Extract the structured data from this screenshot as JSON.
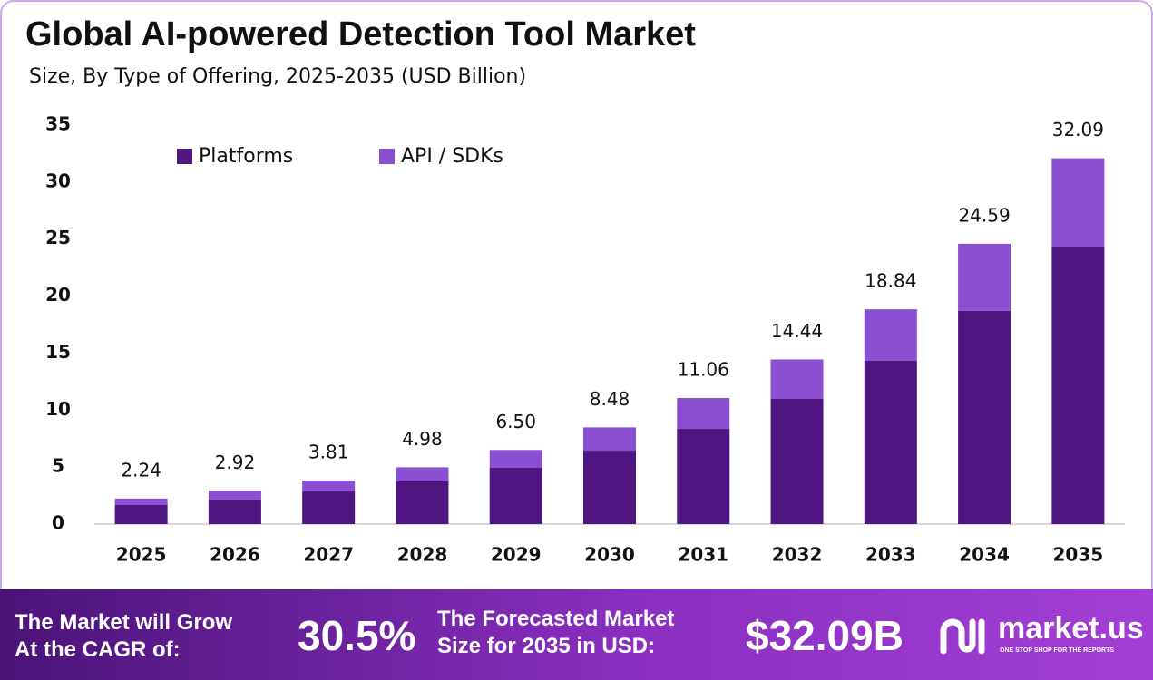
{
  "chart_data": {
    "type": "stacked_bar",
    "title": "Global AI-powered Detection Tool Market",
    "subtitle": "Size, By Type of Offering, 2025-2035 (USD Billion)",
    "categories": [
      "2025",
      "2026",
      "2027",
      "2028",
      "2029",
      "2030",
      "2031",
      "2032",
      "2033",
      "2034",
      "2035"
    ],
    "series": [
      {
        "name": "Platforms",
        "color": "#4f1580",
        "values": [
          1.67,
          2.15,
          2.86,
          3.74,
          4.93,
          6.44,
          8.35,
          10.98,
          14.32,
          18.7,
          24.34
        ]
      },
      {
        "name": "API / SDKs",
        "color": "#8b4fd1",
        "values": [
          0.57,
          0.77,
          0.95,
          1.24,
          1.57,
          2.04,
          2.71,
          3.46,
          4.52,
          5.89,
          7.75
        ]
      }
    ],
    "totals": [
      2.24,
      2.92,
      3.81,
      4.98,
      6.5,
      8.48,
      11.06,
      14.44,
      18.84,
      24.59,
      32.09
    ],
    "total_labels": [
      "2.24",
      "2.92",
      "3.81",
      "4.98",
      "6.50",
      "8.48",
      "11.06",
      "14.44",
      "18.84",
      "24.59",
      "32.09"
    ],
    "ylim": [
      0,
      35
    ],
    "yticks": [
      0,
      5,
      10,
      15,
      20,
      25,
      30,
      35
    ],
    "grid": false,
    "legend": "top-left"
  },
  "footer": {
    "cagr_text": [
      "The Market will Grow",
      "At the CAGR of:"
    ],
    "cagr": "30.5%",
    "forecast_text": [
      "The Forecasted Market",
      "Size for 2035 in USD:"
    ],
    "forecast": "$32.09B",
    "brand": "market.us",
    "tagline": "ONE STOP SHOP FOR THE REPORTS"
  }
}
